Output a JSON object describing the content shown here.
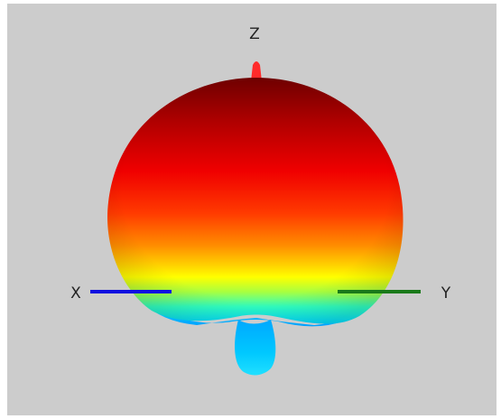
{
  "axes": {
    "x": {
      "label": "X",
      "color": "#1010e0"
    },
    "y": {
      "label": "Y",
      "color": "#1a7a1a"
    },
    "z": {
      "label": "Z",
      "color": "#ff2a2a"
    }
  },
  "colormap": [
    "#7a0000",
    "#d00000",
    "#ff2200",
    "#ff8000",
    "#ffff00",
    "#80ff40",
    "#00ffcc",
    "#00c8ff"
  ],
  "background_color": "#cccccc"
}
